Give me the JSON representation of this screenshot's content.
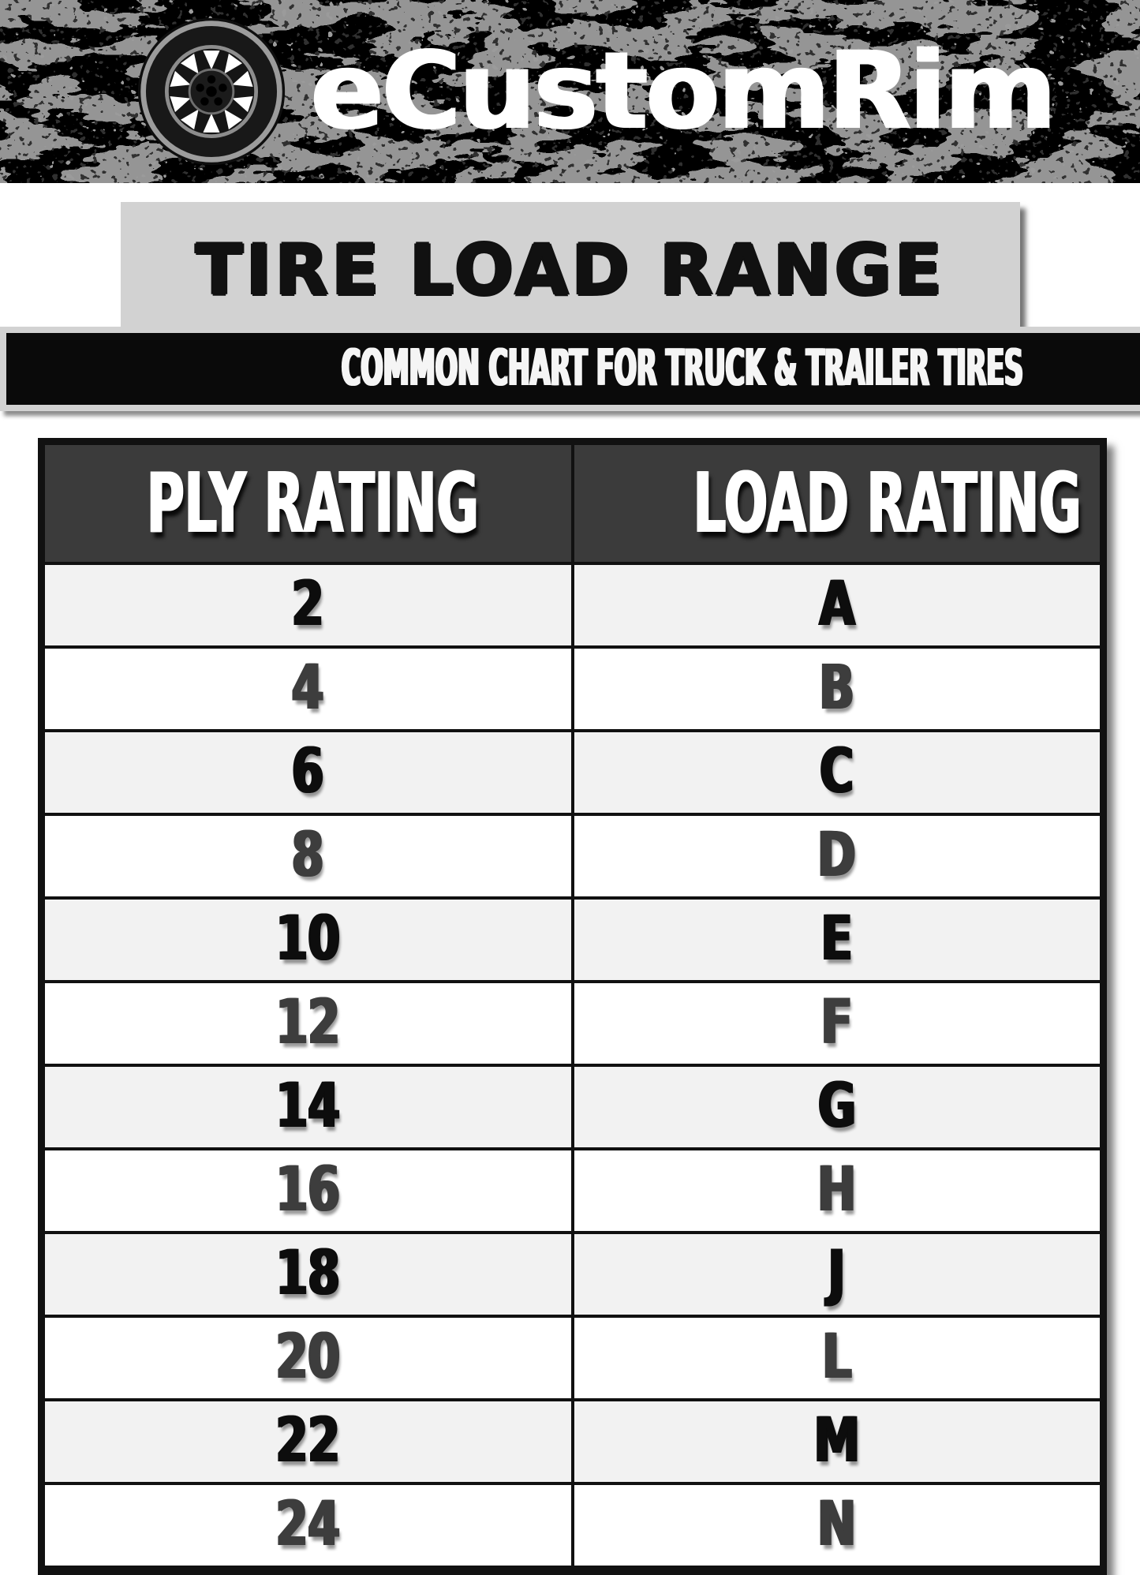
{
  "header": {
    "brand": "eCustomRim",
    "logo_icon": "tire-wheel-icon"
  },
  "title_section": {
    "title": "TIRE LOAD RANGE",
    "subtitle": "COMMON CHART FOR TRUCK & TRAILER TIRES"
  },
  "table": {
    "columns": [
      "PLY RATING",
      "LOAD RATING"
    ],
    "rows": [
      [
        "2",
        "A"
      ],
      [
        "4",
        "B"
      ],
      [
        "6",
        "C"
      ],
      [
        "8",
        "D"
      ],
      [
        "10",
        "E"
      ],
      [
        "12",
        "F"
      ],
      [
        "14",
        "G"
      ],
      [
        "16",
        "H"
      ],
      [
        "18",
        "J"
      ],
      [
        "20",
        "L"
      ],
      [
        "22",
        "M"
      ],
      [
        "24",
        "N"
      ]
    ]
  },
  "chart_data": {
    "type": "table",
    "title": "TIRE LOAD RANGE",
    "subtitle": "COMMON CHART FOR TRUCK & TRAILER TIRES",
    "columns": [
      "PLY RATING",
      "LOAD RATING"
    ],
    "rows": [
      [
        "2",
        "A"
      ],
      [
        "4",
        "B"
      ],
      [
        "6",
        "C"
      ],
      [
        "8",
        "D"
      ],
      [
        "10",
        "E"
      ],
      [
        "12",
        "F"
      ],
      [
        "14",
        "G"
      ],
      [
        "16",
        "H"
      ],
      [
        "18",
        "J"
      ],
      [
        "20",
        "L"
      ],
      [
        "22",
        "M"
      ],
      [
        "24",
        "N"
      ]
    ]
  },
  "colors": {
    "banner_bg": "#000000",
    "banner_splotch": "#4d4d4d",
    "title_box_bg": "#d2d2d2",
    "subtitle_bg": "#0a0a0a",
    "table_header_bg": "#3b3b3b",
    "row_alt_bg": "#f2f2f2",
    "row_bg": "#ffffff",
    "cell_text_dark": "#0d0d0d",
    "cell_text_gray": "#3d3d3d"
  }
}
